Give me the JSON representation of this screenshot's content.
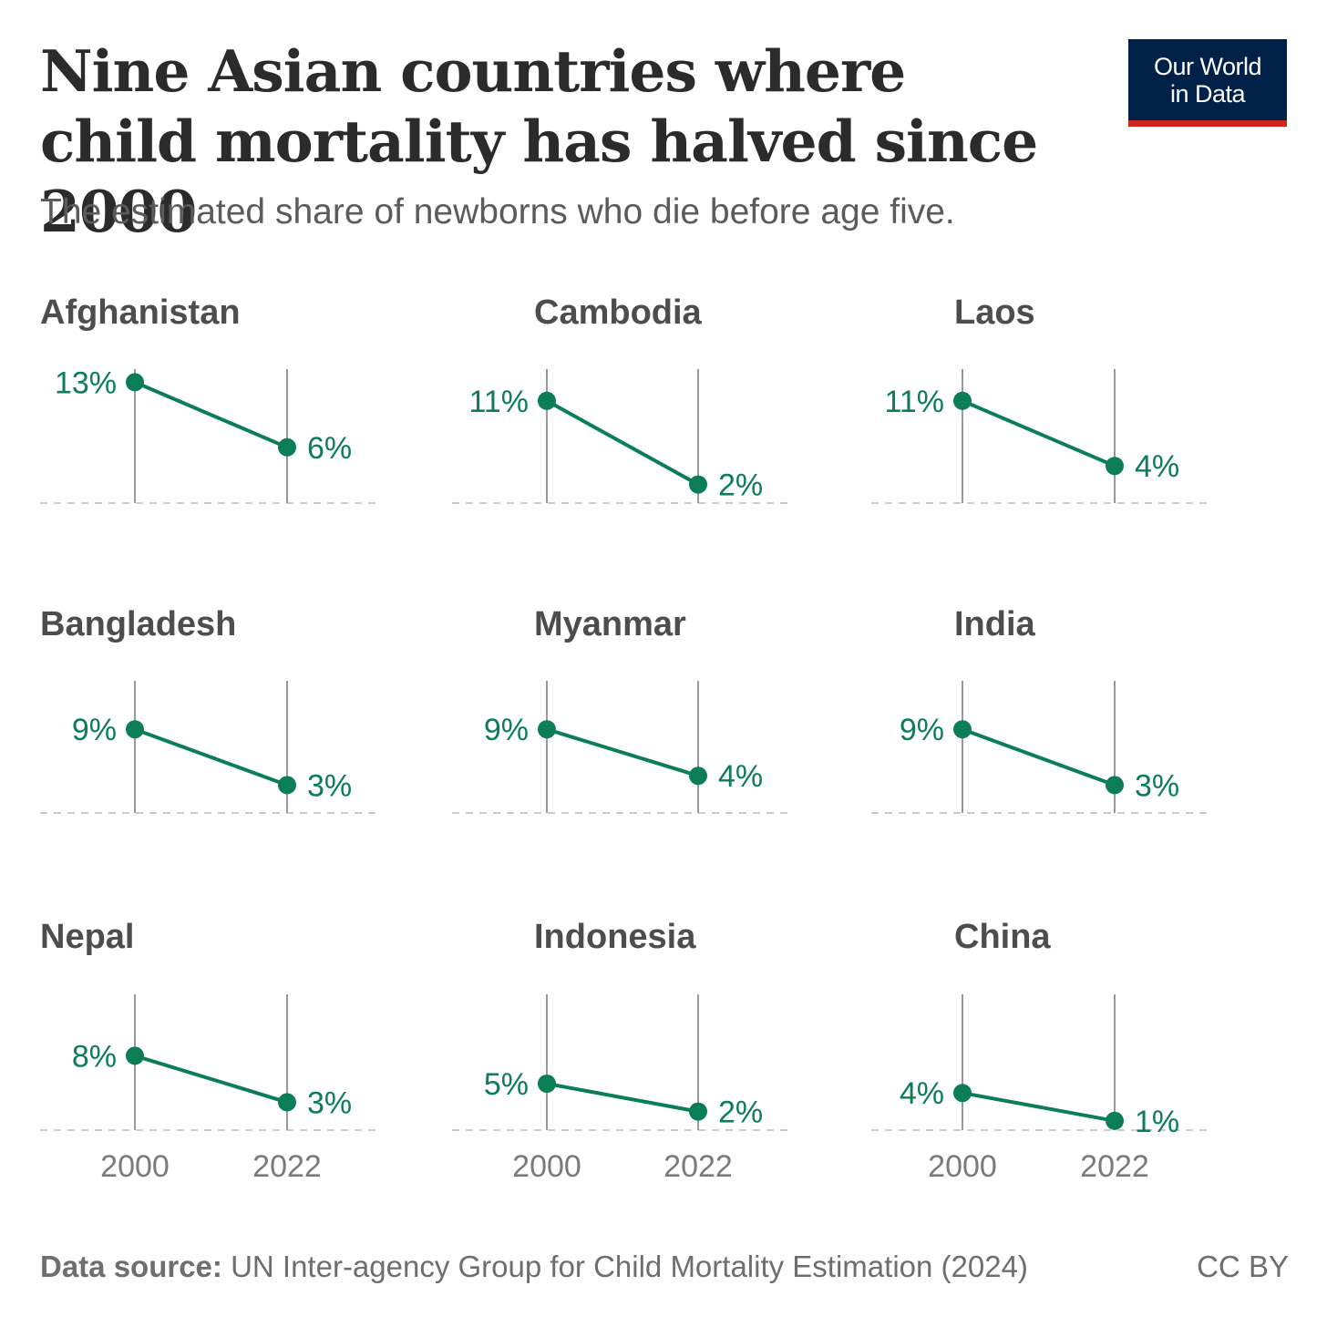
{
  "title": "Nine Asian countries where child mortality has halved since 2000",
  "subtitle": "The estimated share of newborns who die before age five.",
  "logo": {
    "line1": "Our World",
    "line2": "in Data",
    "background": "#002147",
    "accent": "#ce261e"
  },
  "footer": {
    "source_label": "Data source:",
    "source_text": "UN Inter-agency Group for Child Mortality Estimation (2024)",
    "license": "CC BY"
  },
  "colors": {
    "line": "#0c7e55",
    "axis": "#999999",
    "baseline": "#cccccc",
    "title": "#2b2b2b",
    "panel_title": "#4d4d4d",
    "year_label": "#7a7a7a"
  },
  "chart_data": {
    "type": "line",
    "layout": "small-multiples-3x3",
    "x": [
      "2000",
      "2022"
    ],
    "y_unit": "%",
    "series": [
      {
        "name": "Afghanistan",
        "values": [
          13,
          6
        ],
        "labels": [
          "13%",
          "6%"
        ]
      },
      {
        "name": "Cambodia",
        "values": [
          11,
          2
        ],
        "labels": [
          "11%",
          "2%"
        ]
      },
      {
        "name": "Laos",
        "values": [
          11,
          4
        ],
        "labels": [
          "11%",
          "4%"
        ]
      },
      {
        "name": "Bangladesh",
        "values": [
          9,
          3
        ],
        "labels": [
          "9%",
          "3%"
        ]
      },
      {
        "name": "Myanmar",
        "values": [
          9,
          4
        ],
        "labels": [
          "9%",
          "4%"
        ]
      },
      {
        "name": "India",
        "values": [
          9,
          3
        ],
        "labels": [
          "9%",
          "3%"
        ]
      },
      {
        "name": "Nepal",
        "values": [
          8,
          3
        ],
        "labels": [
          "8%",
          "3%"
        ]
      },
      {
        "name": "Indonesia",
        "values": [
          5,
          2
        ],
        "labels": [
          "5%",
          "2%"
        ]
      },
      {
        "name": "China",
        "values": [
          4,
          1
        ],
        "labels": [
          "4%",
          "1%"
        ]
      }
    ],
    "year_labels_shown_on": "bottom-row"
  }
}
